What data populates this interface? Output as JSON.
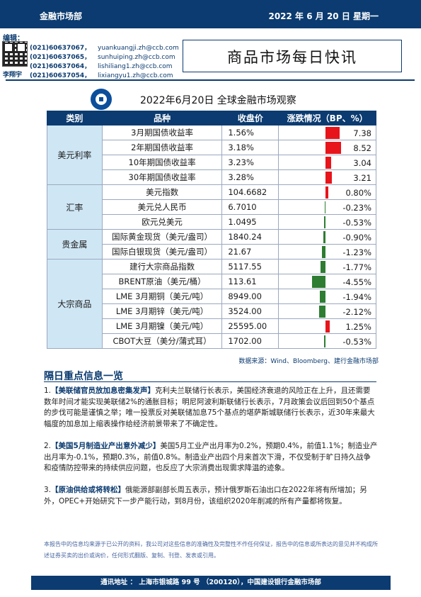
{
  "header": {
    "department": "金融市场部",
    "date": "2022 年 6 月 20 日  星期一",
    "editors_label": "编辑：",
    "title": "商品市场每日快讯",
    "last_editor_name": "李翔宇"
  },
  "contacts": [
    {
      "tel": "(021)60637067，",
      "email": "yuankuangji.zh@ccb.com"
    },
    {
      "tel": "(021)60637065，",
      "email": "sunhuiping.zh@ccb.com"
    },
    {
      "tel": "(021)60637064，",
      "email": "lishiliang1.zh@ccb.com"
    },
    {
      "tel": "(021)60637054，",
      "email": "lixiangyu1.zh@ccb.com"
    }
  ],
  "table": {
    "title": "2022年6月20日  全球金融市场观察",
    "columns": [
      "类别",
      "品种",
      "收盘价",
      "涨跌情况（BP、%）"
    ],
    "groups": [
      {
        "category": "美元利率",
        "rows": [
          {
            "name": "3月期国债收益率",
            "close": "1.56%",
            "change": "7.38",
            "value": 7.38
          },
          {
            "name": "2年期国债收益率",
            "close": "3.18%",
            "change": "8.52",
            "value": 8.52
          },
          {
            "name": "10年期国债收益率",
            "close": "3.23%",
            "change": "3.04",
            "value": 3.04
          },
          {
            "name": "30年期国债收益率",
            "close": "3.28%",
            "change": "3.21",
            "value": 3.21
          }
        ]
      },
      {
        "category": "汇率",
        "rows": [
          {
            "name": "美元指数",
            "close": "104.6682",
            "change": "0.80%",
            "value": 0.8
          },
          {
            "name": "美元兑人民币",
            "close": "6.7010",
            "change": "-0.23%",
            "value": -0.23
          },
          {
            "name": "欧元兑美元",
            "close": "1.0495",
            "change": "-0.53%",
            "value": -0.53
          }
        ]
      },
      {
        "category": "贵金属",
        "rows": [
          {
            "name": "国际黄金现货（美元/盎司）",
            "close": "1840.24",
            "change": "-0.90%",
            "value": -0.9
          },
          {
            "name": "国际白银现货（美元/盎司）",
            "close": "21.67",
            "change": "-1.23%",
            "value": -1.23
          }
        ]
      },
      {
        "category": "大宗商品",
        "rows": [
          {
            "name": "建行大宗商品指数",
            "close": "5117.55",
            "change": "-1.77%",
            "value": -1.77
          },
          {
            "name": "BRENT原油（美元/桶）",
            "close": "113.61",
            "change": "-4.55%",
            "value": -4.55
          },
          {
            "name": "LME 3月期铜（美元/吨）",
            "close": "8949.00",
            "change": "-1.94%",
            "value": -1.94
          },
          {
            "name": "LME 3月期锌（美元/吨）",
            "close": "3524.00",
            "change": "-2.12%",
            "value": -2.12
          },
          {
            "name": "LME 3月期镍（美元/吨）",
            "close": "25595.00",
            "change": "1.25%",
            "value": 1.25
          },
          {
            "name": "CBOT大豆（美分/蒲式耳）",
            "close": "1702.00",
            "change": "-0.53%",
            "value": -0.53
          }
        ]
      }
    ],
    "source": "数据来源：Wind、Bloomberg、建行金融市场部"
  },
  "section_title": "隔日重点信息一览",
  "news": [
    {
      "prefix": "1.",
      "headline": "【美联储官员放加息密集发声】",
      "body": "克利夫兰联储行长表示，美国经济衰退的风险正在上升，且还需要数年时间才能实现美联储2%的通胀目标；明尼阿波利斯联储行长表示，7月政策会议后回到50个基点的步伐可能是谨慎之举；唯一投票反对美联储加息75个基点的堪萨斯城联储行长表示，近30年来最大幅度的加息加上缩表操作给经济前景带来了不确定性。"
    },
    {
      "prefix": "2.",
      "headline": "【美国5月制造业产出意外减少】",
      "body": "美国5月工业产出月率为0.2%，预期0.4%，前值1.1%；制造业产出月率为-0.1%，预期0.3%，前值0.8%。制造业产出四个月来首次下滑，不仅受制于旷日持久战争和疫情防控带来的持续供应问题，也反应了大宗消费出现需求降温的迹象。"
    },
    {
      "prefix": "3.",
      "headline": "【原油供给或将转松】",
      "body": "俄能源部副部长周五表示，预计俄罗斯石油出口在2022年将有所增加；另外，OPEC+开始研究下一步产能行动，到8月份，该组织2020年削减的所有产量都将恢复。"
    }
  ],
  "disclaimer": "本报告中的信息均来源于已公开的资料，我公司对这些信息的准确性及完整性不作任何保证，报告中的信息或所表达的意见并不构成所述证券买卖的出价或询价，任何形式翻版、复制、刊登、发表或引用。",
  "footer": "通讯地址 ：  上海市银城路 99 号 （200120），中国建设银行金融市场部",
  "colors": {
    "primary": "#0b3b70",
    "category_bg": "#cfe6f4",
    "up": "#e8141b",
    "down": "#2e7d32"
  }
}
